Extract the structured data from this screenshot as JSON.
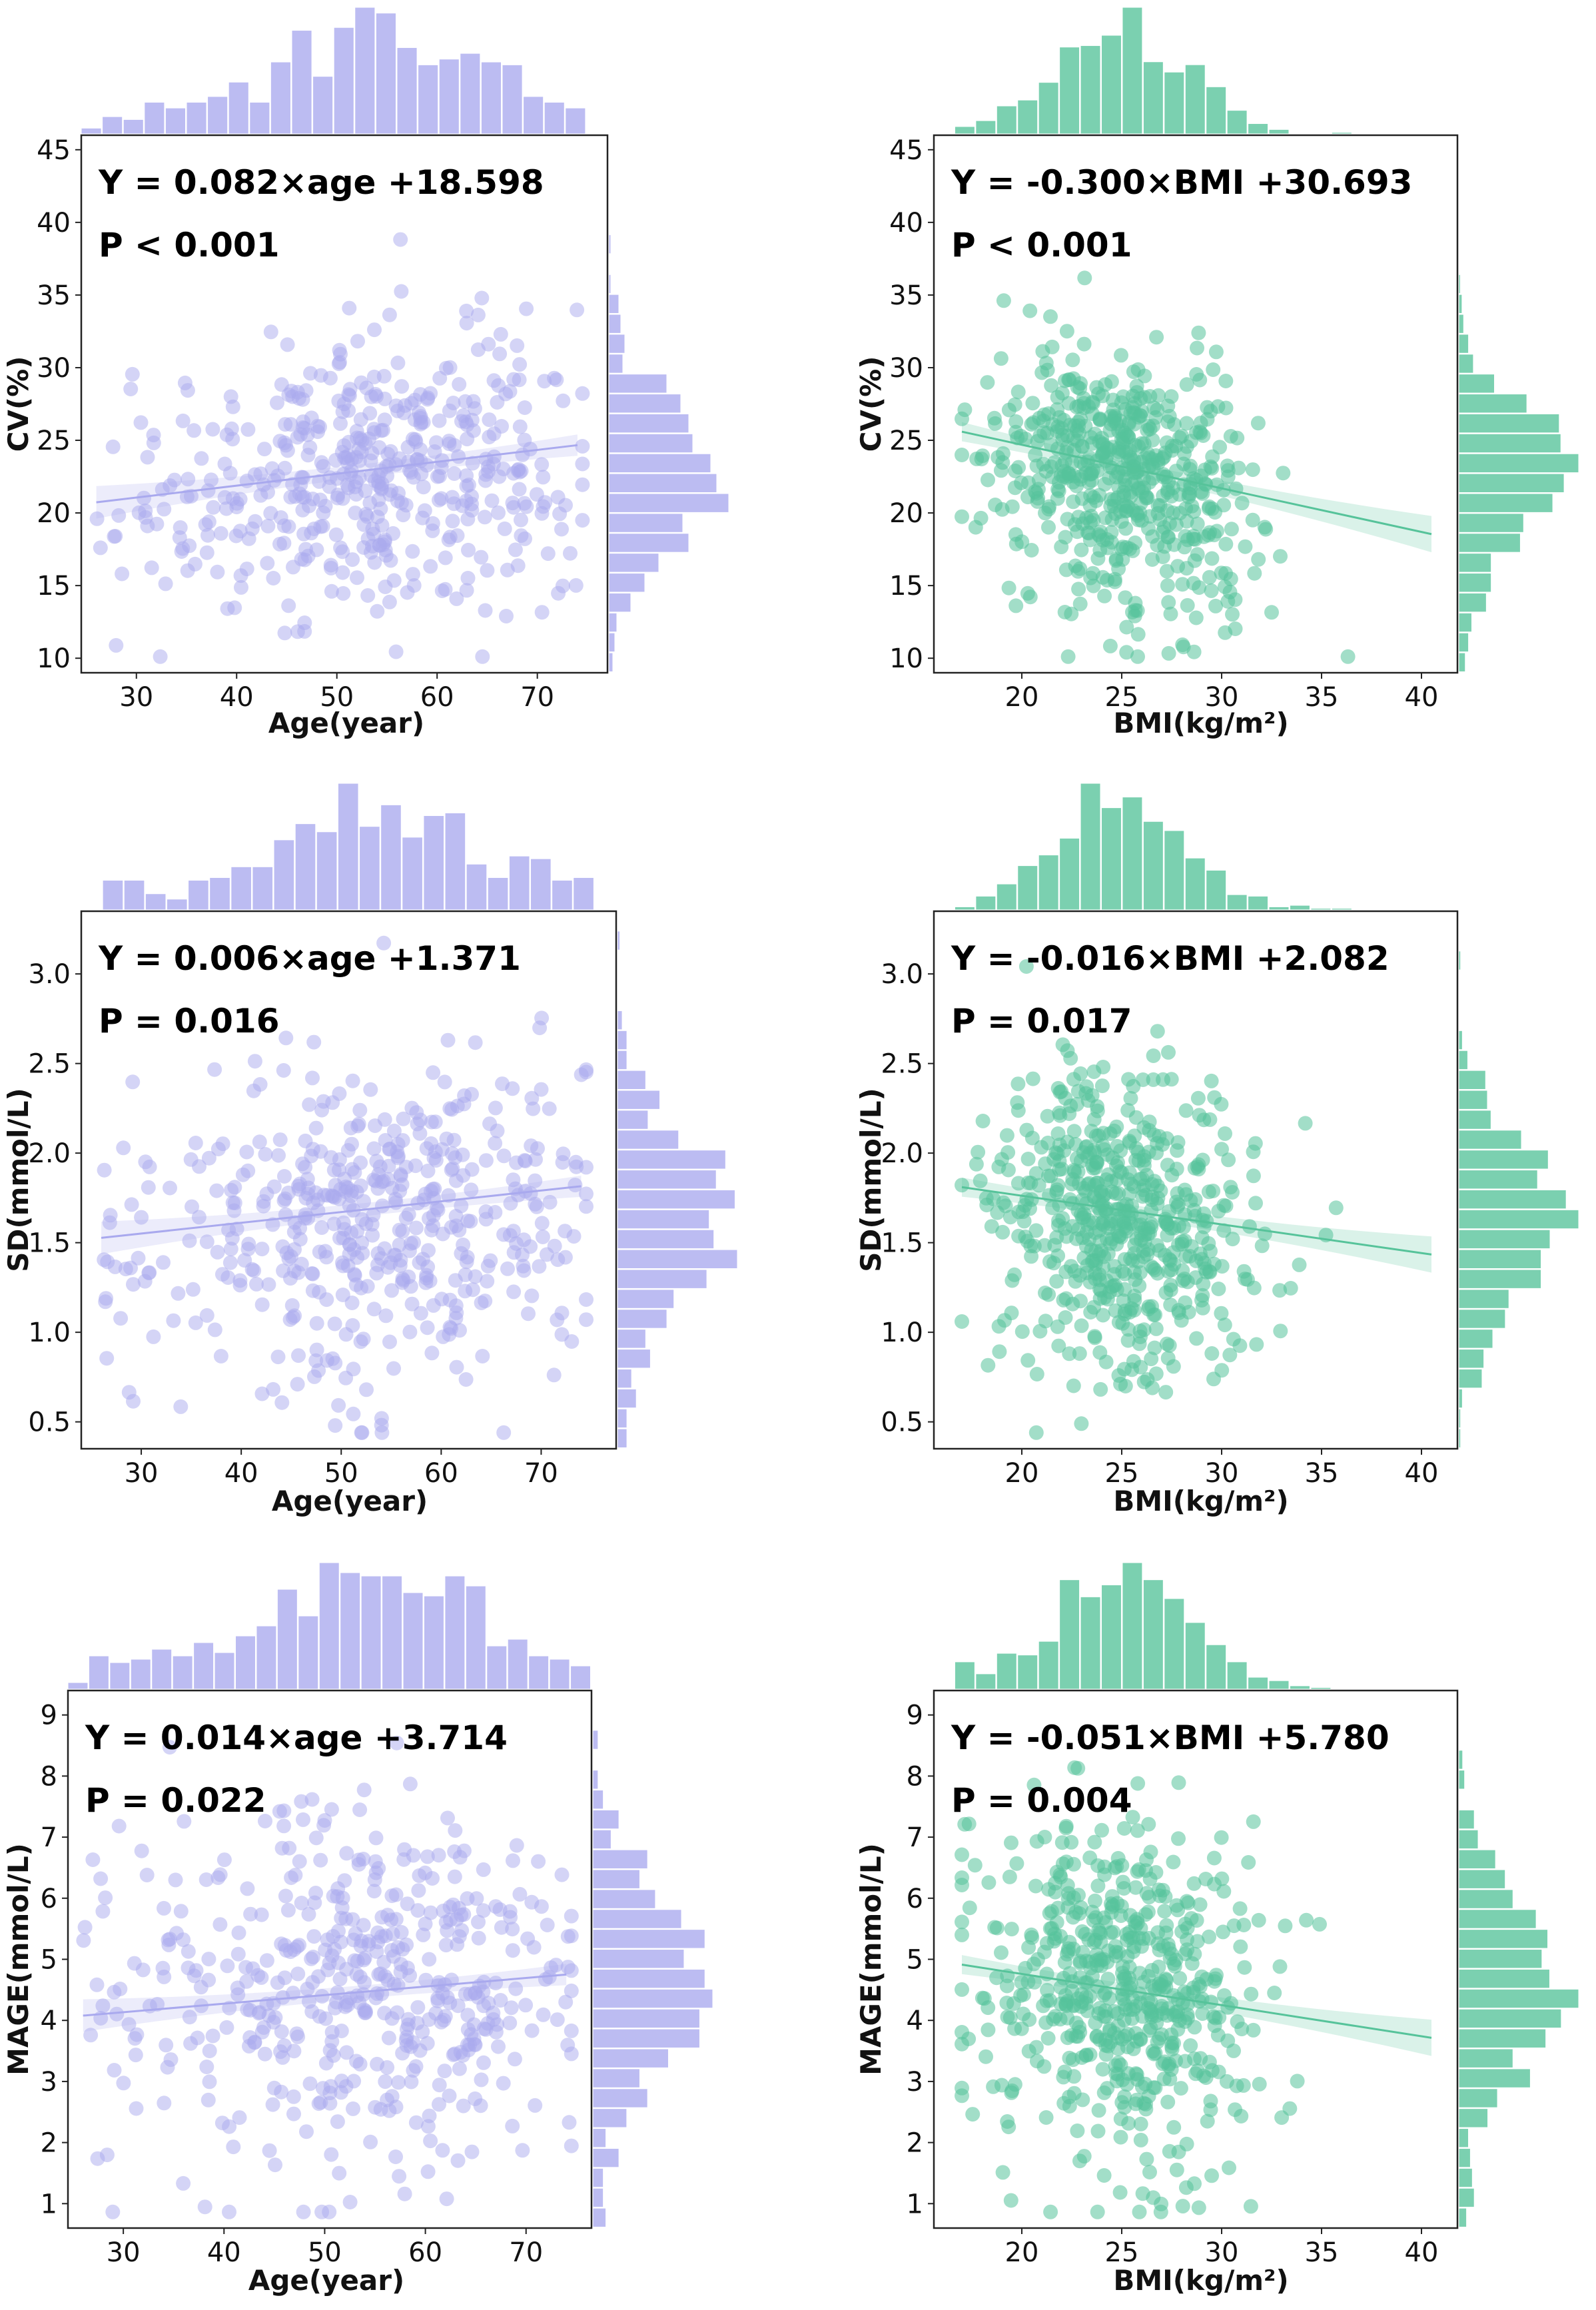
{
  "figure": {
    "colors": {
      "age": "#a9a9ee",
      "bmi": "#56c39a",
      "axis": "#222222"
    },
    "marker_counts": {
      "age": 480,
      "bmi": 560
    }
  },
  "chart_data": [
    {
      "type": "scatter",
      "title": "",
      "xlabel": "Age(year)",
      "ylabel": "CV(%)",
      "xlim": [
        24.5,
        77
      ],
      "ylim": [
        9,
        46
      ],
      "xticks": [
        30,
        40,
        50,
        60,
        70
      ],
      "yticks": [
        10,
        15,
        20,
        25,
        30,
        35,
        40,
        45
      ],
      "equation": "Y = 0.082×age +18.598",
      "p_value": "P < 0.001",
      "fit": {
        "slope": 0.082,
        "intercept": 18.598,
        "x_range": [
          26,
          74
        ]
      },
      "x_center": 55,
      "x_sd": 9.5,
      "y_center": 23,
      "y_sd": 4.5,
      "color": "age",
      "grid": false
    },
    {
      "type": "scatter",
      "title": "",
      "xlabel": "BMI(kg/m²)",
      "ylabel": "CV(%)",
      "xlim": [
        15.6,
        41.8
      ],
      "ylim": [
        9,
        46
      ],
      "xticks": [
        20,
        25,
        30,
        35,
        40
      ],
      "yticks": [
        10,
        15,
        20,
        25,
        30,
        35,
        40,
        45
      ],
      "equation": "Y = -0.300×BMI +30.693",
      "p_value": "P < 0.001",
      "fit": {
        "slope": -0.3,
        "intercept": 30.693,
        "x_range": [
          17,
          40.5
        ]
      },
      "x_center": 25,
      "x_sd": 3.3,
      "y_center": 22.5,
      "y_sd": 4.5,
      "color": "bmi",
      "grid": false
    },
    {
      "type": "scatter",
      "title": "",
      "xlabel": "Age(year)",
      "ylabel": "SD(mmol/L)",
      "xlim": [
        24,
        77.5
      ],
      "ylim": [
        0.35,
        3.35
      ],
      "xticks": [
        30,
        40,
        50,
        60,
        70
      ],
      "yticks": [
        0.5,
        1.0,
        1.5,
        2.0,
        2.5,
        3.0
      ],
      "equation": "Y = 0.006×age +1.371",
      "p_value": "P = 0.016",
      "fit": {
        "slope": 0.006,
        "intercept": 1.371,
        "x_range": [
          26,
          74
        ]
      },
      "x_center": 55,
      "x_sd": 9.5,
      "y_center": 1.6,
      "y_sd": 0.42,
      "color": "age",
      "grid": false
    },
    {
      "type": "scatter",
      "title": "",
      "xlabel": "BMI(kg/m²)",
      "ylabel": "SD(mmol/L)",
      "xlim": [
        15.6,
        41.8
      ],
      "ylim": [
        0.35,
        3.35
      ],
      "xticks": [
        20,
        25,
        30,
        35,
        40
      ],
      "yticks": [
        0.5,
        1.0,
        1.5,
        2.0,
        2.5,
        3.0
      ],
      "equation": "Y = -0.016×BMI +2.082",
      "p_value": "P = 0.017",
      "fit": {
        "slope": -0.016,
        "intercept": 2.082,
        "x_range": [
          17,
          40.5
        ]
      },
      "x_center": 25,
      "x_sd": 3.3,
      "y_center": 1.6,
      "y_sd": 0.42,
      "color": "bmi",
      "grid": false
    },
    {
      "type": "scatter",
      "title": "",
      "xlabel": "Age(year)",
      "ylabel": "MAGE(mmol/L)",
      "xlim": [
        24.5,
        76.5
      ],
      "ylim": [
        0.6,
        9.4
      ],
      "xticks": [
        30,
        40,
        50,
        60,
        70
      ],
      "yticks": [
        1,
        2,
        3,
        4,
        5,
        6,
        7,
        8,
        9
      ],
      "equation": "Y = 0.014×age +3.714",
      "p_value": "P = 0.022",
      "fit": {
        "slope": 0.014,
        "intercept": 3.714,
        "x_range": [
          26,
          74
        ]
      },
      "x_center": 55,
      "x_sd": 9.5,
      "y_center": 4.5,
      "y_sd": 1.35,
      "color": "age",
      "grid": false
    },
    {
      "type": "scatter",
      "title": "",
      "xlabel": "BMI(kg/m²)",
      "ylabel": "MAGE(mmol/L)",
      "xlim": [
        15.6,
        41.8
      ],
      "ylim": [
        0.6,
        9.4
      ],
      "xticks": [
        20,
        25,
        30,
        35,
        40
      ],
      "yticks": [
        1,
        2,
        3,
        4,
        5,
        6,
        7,
        8,
        9
      ],
      "equation": "Y = -0.051×BMI +5.780",
      "p_value": "P = 0.004",
      "fit": {
        "slope": -0.051,
        "intercept": 5.78,
        "x_range": [
          17,
          40.5
        ]
      },
      "x_center": 25,
      "x_sd": 3.3,
      "y_center": 4.5,
      "y_sd": 1.35,
      "color": "bmi",
      "grid": false
    }
  ]
}
